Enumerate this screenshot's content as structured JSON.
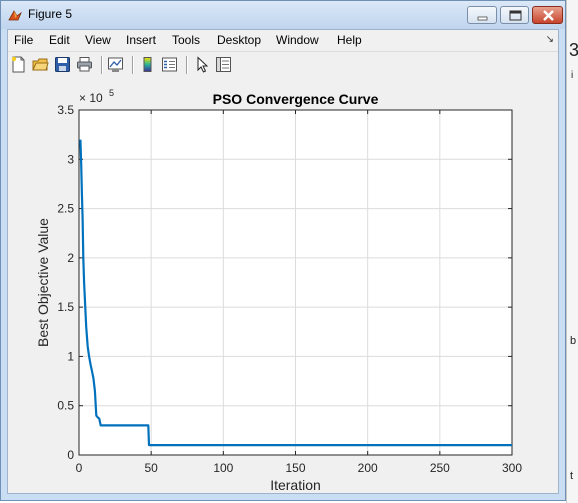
{
  "window": {
    "title": "Figure 5",
    "controls": {
      "minimize": "minimize",
      "maximize": "maximize",
      "close": "close"
    }
  },
  "menu": {
    "items": [
      "File",
      "Edit",
      "View",
      "Insert",
      "Tools",
      "Desktop",
      "Window",
      "Help"
    ]
  },
  "toolbar": {
    "icons": [
      "new-figure-icon",
      "open-file-icon",
      "save-icon",
      "print-icon",
      "link-plot-icon",
      "colorbar-icon",
      "legend-icon",
      "pointer-icon",
      "property-editor-icon"
    ]
  },
  "colors": {
    "line": "#0072bd",
    "axes_bg": "#ffffff",
    "figure_bg": "#f0f0f0",
    "grid": "#dcdcdc"
  },
  "chart_data": {
    "type": "line",
    "title": "PSO Convergence Curve",
    "xlabel": "Iteration",
    "ylabel": "Best Objective Value",
    "y_exponent_label": "× 10",
    "y_exponent_power": "5",
    "xlim": [
      0,
      300
    ],
    "ylim": [
      0,
      350000
    ],
    "xticks": [
      0,
      50,
      100,
      150,
      200,
      250,
      300
    ],
    "xtick_labels": [
      "0",
      "50",
      "100",
      "150",
      "200",
      "250",
      "300"
    ],
    "yticks": [
      0,
      50000,
      100000,
      150000,
      200000,
      250000,
      300000,
      350000
    ],
    "ytick_labels": [
      "0",
      "0.5",
      "1",
      "1.5",
      "2",
      "2.5",
      "3",
      "3.5"
    ],
    "grid": true,
    "series": [
      {
        "x": [
          1,
          1.5,
          2,
          2.5,
          3,
          3.5,
          4,
          5,
          6,
          7,
          8,
          9,
          10,
          11,
          12,
          13,
          14,
          15,
          16,
          48,
          48.5,
          300
        ],
        "y": [
          320000,
          295000,
          265000,
          240000,
          200000,
          175000,
          160000,
          130000,
          110000,
          100000,
          92000,
          85000,
          78000,
          65000,
          40000,
          38000,
          37000,
          30000,
          30000,
          30000,
          10000,
          10000
        ]
      }
    ]
  },
  "background_window_marks": [
    "3",
    "i",
    "b",
    "t"
  ]
}
